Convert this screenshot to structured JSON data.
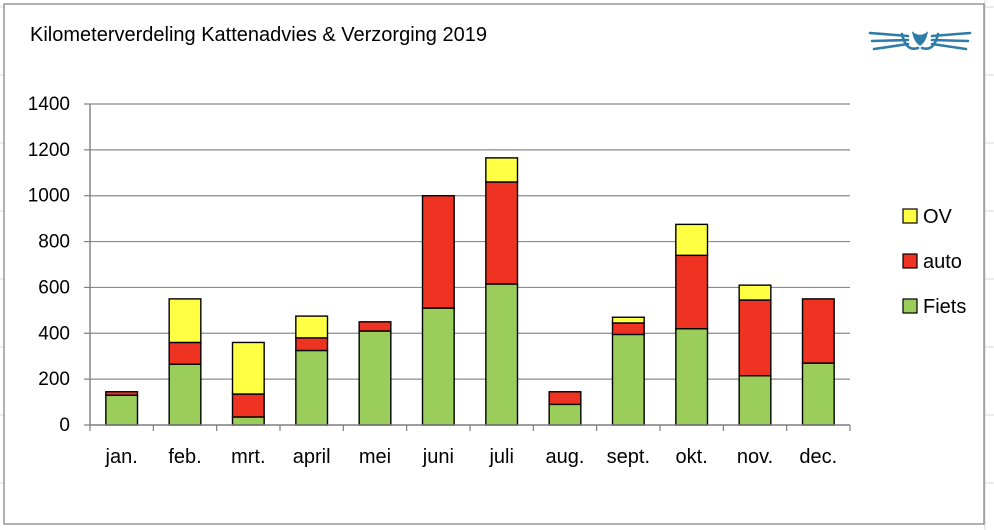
{
  "chart_data": {
    "type": "bar",
    "stacked": true,
    "title": "Kilometerverdeling Kattenadvies & Verzorging 2019",
    "categories": [
      "jan.",
      "feb.",
      "mrt.",
      "april",
      "mei",
      "juni",
      "juli",
      "aug.",
      "sept.",
      "okt.",
      "nov.",
      "dec."
    ],
    "series": [
      {
        "name": "Fiets",
        "color": "#9ACD5A",
        "values": [
          130,
          265,
          35,
          325,
          410,
          510,
          615,
          90,
          395,
          420,
          215,
          270
        ]
      },
      {
        "name": "auto",
        "color": "#EE3322",
        "values": [
          15,
          95,
          100,
          55,
          40,
          490,
          445,
          55,
          50,
          320,
          330,
          280
        ]
      },
      {
        "name": "OV",
        "color": "#FFFF44",
        "values": [
          0,
          190,
          225,
          95,
          0,
          0,
          105,
          0,
          25,
          135,
          65,
          0
        ]
      }
    ],
    "legend_order": [
      "OV",
      "auto",
      "Fiets"
    ],
    "yticks": [
      "0",
      "200",
      "400",
      "600",
      "800",
      "1000",
      "1200",
      "1400"
    ],
    "ylim": [
      0,
      1400
    ],
    "grid": true,
    "legend_position": "right",
    "logo_icon": "cat-face-icon"
  }
}
